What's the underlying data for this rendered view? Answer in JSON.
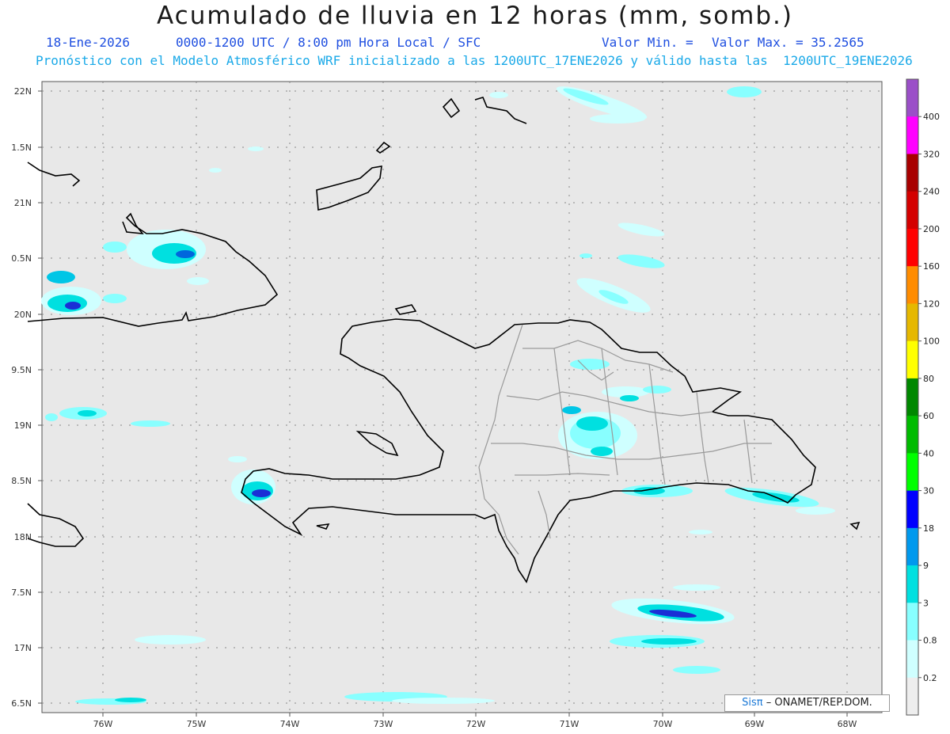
{
  "header": {
    "title": "Acumulado de lluvia en 12 horas (mm, somb.)",
    "date": "18-Ene-2026",
    "period": "0000-1200 UTC / 8:00 pm Hora Local / SFC",
    "min_label": "Valor Min. =",
    "max_label": "Valor Max. = 35.2565",
    "model_line": "Pronóstico con el Modelo Atmosférico WRF inicializado a las 1200UTC_17ENE2026 y válido hasta las  1200UTC_19ENE2026"
  },
  "axes": {
    "lat_labels": [
      "22N",
      "1.5N",
      "21N",
      "0.5N",
      "20N",
      "9.5N",
      "19N",
      "8.5N",
      "18N",
      "7.5N",
      "17N",
      "6.5N"
    ],
    "lon_labels": [
      "76W",
      "75W",
      "74W",
      "73W",
      "72W",
      "71W",
      "70W",
      "69W",
      "68W"
    ]
  },
  "colorbar": {
    "labels": [
      "400",
      "320",
      "240",
      "200",
      "160",
      "120",
      "100",
      "80",
      "60",
      "40",
      "30",
      "18",
      "9",
      "3",
      "0.8",
      "0.2"
    ],
    "colors": [
      "#9b4fc8",
      "#ff00ff",
      "#a80000",
      "#d40000",
      "#ff0000",
      "#ff8c00",
      "#e6b800",
      "#ffff00",
      "#008800",
      "#00bb00",
      "#00ff00",
      "#0000ff",
      "#0099ee",
      "#00e0e0",
      "#88ffff",
      "#cfffff",
      "#eeeeee"
    ]
  },
  "colors": {
    "land_bg": "#e8e8e8",
    "coast": "#000000",
    "provinces": "#9a9a9a",
    "grid": "#888888"
  },
  "credit": {
    "sis": "Sisπ",
    "text": "– ONAMET/REP.DOM."
  }
}
